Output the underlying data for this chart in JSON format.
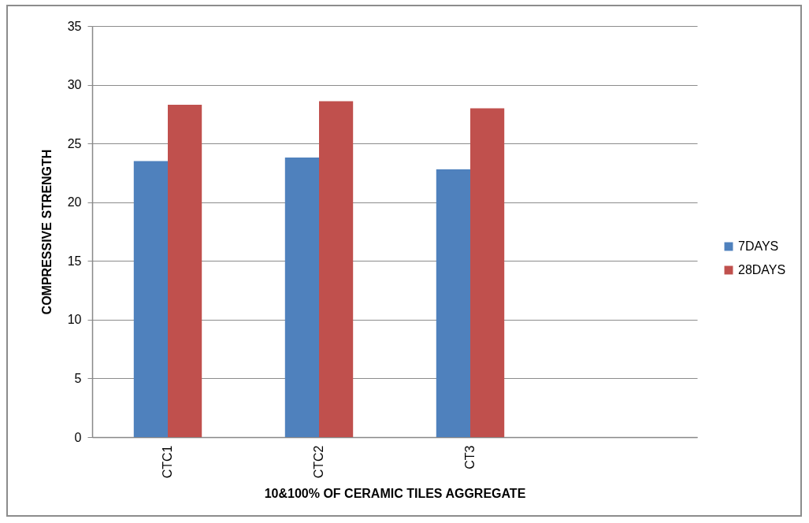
{
  "chart_data": {
    "type": "bar",
    "xlabel": "10&100% OF CERAMIC TILES AGGREGATE",
    "ylabel": "COMPRESSIVE STRENGTH",
    "categories": [
      "CTC1",
      "CTC2",
      "CT3",
      null
    ],
    "series": [
      {
        "name": "7DAYS",
        "color": "#4f81bd",
        "values": [
          23.5,
          23.8,
          22.8,
          null
        ]
      },
      {
        "name": "28DAYS",
        "color": "#c0504d",
        "values": [
          28.3,
          28.6,
          28.0,
          null
        ]
      }
    ],
    "ylim": [
      0,
      35
    ],
    "yticks": [
      0,
      5,
      10,
      15,
      20,
      25,
      30,
      35
    ],
    "grid": "y",
    "legend": "right"
  }
}
